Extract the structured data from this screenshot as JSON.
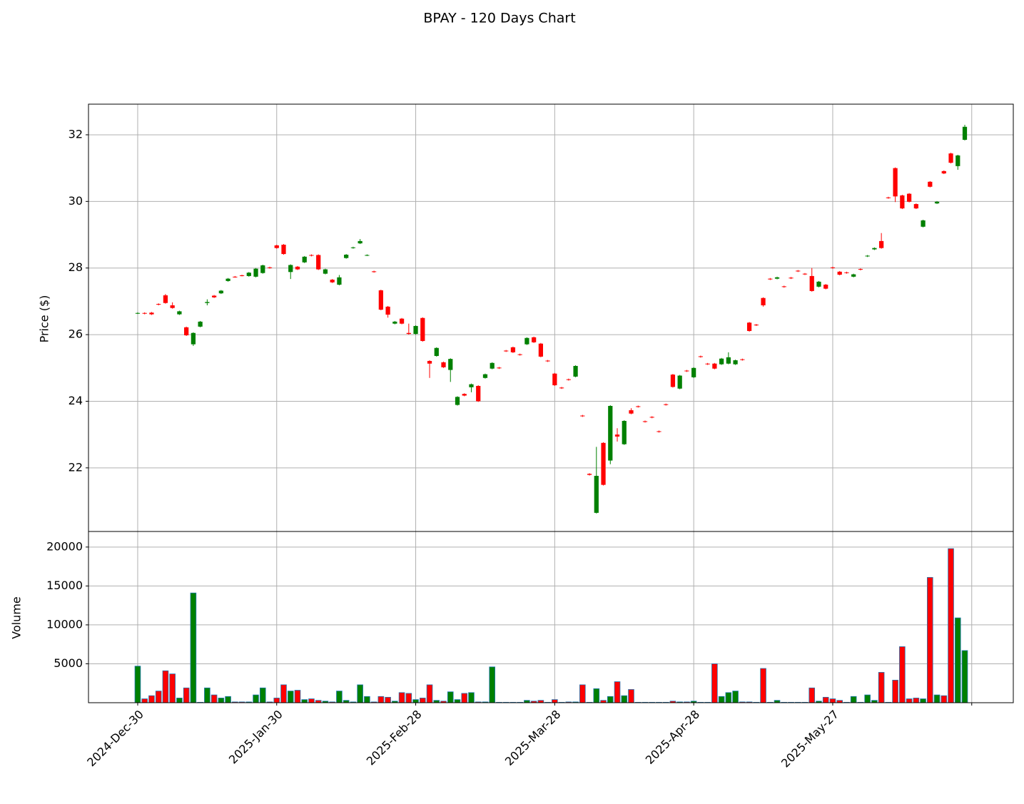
{
  "chart_data": {
    "type": "candlestick",
    "title": "BPAY - 120 Days Chart",
    "y_label": "Price ($)",
    "volume_label": "Volume",
    "up_color": "green",
    "down_color": "red",
    "volume_edge_color": "#1f77b4",
    "grid": true,
    "categories": [
      "2024-Dec-30",
      null,
      null,
      null,
      null,
      null,
      null,
      null,
      null,
      null,
      null,
      null,
      null,
      null,
      null,
      null,
      null,
      null,
      null,
      null,
      "2025-Jan-30",
      null,
      null,
      null,
      null,
      null,
      null,
      null,
      null,
      null,
      null,
      null,
      null,
      null,
      null,
      null,
      null,
      null,
      null,
      null,
      "2025-Feb-28",
      null,
      null,
      null,
      null,
      null,
      null,
      null,
      null,
      null,
      null,
      null,
      null,
      null,
      null,
      null,
      null,
      null,
      null,
      null,
      "2025-Mar-28",
      null,
      null,
      null,
      null,
      null,
      null,
      null,
      null,
      null,
      null,
      null,
      null,
      null,
      null,
      null,
      null,
      null,
      null,
      null,
      "2025-Apr-28",
      null,
      null,
      null,
      null,
      null,
      null,
      null,
      null,
      null,
      null,
      null,
      null,
      null,
      null,
      null,
      null,
      null,
      null,
      null,
      "2025-May-27",
      null,
      null,
      null,
      null,
      null,
      null,
      null,
      null,
      null,
      null,
      null,
      null,
      null,
      null,
      null,
      null,
      null,
      null,
      null
    ],
    "xlim": [
      -7.08,
      125.98
    ],
    "xticks": [
      0,
      20,
      40,
      60,
      80,
      100,
      120
    ],
    "open": [
      26.64,
      26.65,
      26.66,
      26.92,
      27.18,
      26.88,
      26.61,
      26.22,
      25.71,
      26.24,
      26.95,
      27.17,
      27.24,
      27.61,
      27.74,
      27.78,
      27.76,
      27.74,
      27.85,
      28.02,
      28.68,
      28.7,
      27.88,
      28.04,
      28.17,
      28.39,
      28.39,
      27.83,
      27.65,
      27.5,
      28.3,
      28.6,
      28.74,
      28.38,
      27.9,
      27.33,
      26.84,
      26.33,
      26.48,
      26.05,
      26.02,
      26.5,
      25.21,
      25.36,
      25.17,
      24.94,
      23.89,
      24.22,
      24.42,
      24.46,
      24.7,
      24.98,
      25.01,
      25.52,
      25.62,
      25.41,
      25.71,
      25.92,
      25.73,
      25.22,
      24.83,
      24.41,
      24.66,
      24.74,
      23.57,
      21.82,
      20.65,
      22.75,
      22.22,
      23.0,
      22.71,
      23.73,
      23.85,
      23.4,
      23.53,
      23.1,
      23.91,
      24.8,
      24.38,
      24.92,
      24.72,
      25.35,
      25.13,
      25.13,
      25.11,
      25.13,
      25.11,
      25.26,
      26.36,
      26.3,
      27.1,
      27.68,
      27.68,
      27.45,
      27.71,
      27.92,
      27.83,
      27.76,
      27.44,
      27.5,
      28.02,
      27.89,
      27.87,
      27.74,
      27.97,
      28.35,
      28.56,
      28.81,
      30.12,
      31.0,
      30.18,
      30.23,
      29.92,
      29.24,
      30.59,
      29.94,
      30.91,
      31.44,
      31.06,
      31.85
    ],
    "high": [
      26.67,
      26.67,
      26.68,
      26.94,
      27.22,
      26.97,
      26.72,
      26.24,
      26.07,
      26.41,
      27.06,
      27.19,
      27.34,
      27.7,
      27.76,
      27.8,
      27.88,
      28.0,
      28.1,
      28.04,
      28.7,
      28.72,
      28.11,
      28.06,
      28.36,
      28.41,
      28.41,
      27.98,
      27.67,
      27.79,
      28.42,
      28.64,
      28.87,
      28.41,
      27.92,
      27.35,
      26.86,
      26.41,
      26.5,
      26.33,
      26.28,
      26.52,
      25.23,
      25.62,
      25.19,
      25.29,
      24.15,
      24.24,
      24.53,
      24.48,
      24.83,
      25.17,
      25.03,
      25.54,
      25.64,
      25.43,
      25.92,
      25.94,
      25.75,
      25.24,
      24.85,
      24.43,
      24.68,
      25.08,
      23.59,
      21.84,
      22.63,
      22.77,
      23.88,
      23.19,
      23.43,
      23.79,
      23.87,
      23.42,
      23.55,
      23.12,
      23.93,
      24.82,
      24.79,
      24.94,
      25.02,
      25.37,
      25.15,
      25.15,
      25.3,
      25.47,
      25.25,
      25.28,
      26.38,
      26.32,
      27.12,
      27.7,
      27.74,
      27.47,
      27.73,
      27.94,
      27.85,
      28.0,
      27.61,
      27.52,
      28.04,
      27.91,
      27.89,
      27.83,
      27.99,
      28.39,
      28.62,
      29.05,
      30.14,
      31.02,
      30.2,
      30.25,
      29.94,
      29.45,
      30.61,
      30.01,
      30.93,
      31.46,
      31.4,
      32.3
    ],
    "low": [
      26.62,
      26.61,
      26.59,
      26.88,
      26.93,
      26.78,
      26.59,
      25.96,
      25.66,
      26.22,
      26.88,
      27.1,
      27.22,
      27.59,
      27.71,
      27.75,
      27.74,
      27.72,
      27.83,
      27.98,
      28.58,
      28.4,
      27.67,
      27.94,
      28.15,
      28.35,
      27.94,
      27.81,
      27.55,
      27.48,
      28.28,
      28.58,
      28.72,
      28.36,
      27.86,
      26.73,
      26.51,
      26.31,
      26.31,
      26.0,
      26.0,
      25.79,
      24.7,
      25.34,
      25.0,
      24.58,
      23.87,
      24.15,
      24.27,
      23.98,
      24.68,
      24.96,
      24.97,
      25.48,
      25.45,
      25.37,
      25.69,
      25.75,
      25.32,
      25.18,
      24.46,
      24.37,
      24.62,
      24.72,
      23.53,
      21.77,
      20.63,
      21.47,
      22.11,
      22.79,
      22.69,
      23.61,
      23.81,
      23.36,
      23.49,
      23.06,
      23.87,
      24.41,
      24.36,
      24.88,
      24.7,
      25.31,
      25.09,
      24.96,
      25.09,
      25.11,
      25.09,
      25.22,
      26.09,
      26.26,
      26.84,
      27.64,
      27.66,
      27.41,
      27.67,
      27.88,
      27.79,
      27.29,
      27.42,
      27.36,
      27.98,
      27.78,
      27.83,
      27.72,
      27.93,
      28.33,
      28.54,
      28.58,
      30.08,
      29.98,
      29.77,
      29.97,
      29.77,
      29.22,
      30.42,
      29.92,
      30.82,
      31.14,
      30.95,
      31.83
    ],
    "close": [
      26.65,
      26.63,
      26.61,
      26.9,
      26.95,
      26.8,
      26.7,
      25.98,
      26.05,
      26.39,
      26.98,
      27.12,
      27.32,
      27.68,
      27.73,
      27.77,
      27.86,
      27.98,
      28.08,
      28.0,
      28.6,
      28.42,
      28.09,
      27.96,
      28.34,
      28.37,
      27.96,
      27.96,
      27.57,
      27.72,
      28.4,
      28.62,
      28.81,
      28.39,
      27.88,
      26.75,
      26.6,
      26.39,
      26.33,
      26.02,
      26.26,
      25.81,
      25.13,
      25.6,
      25.02,
      25.27,
      24.13,
      24.17,
      24.51,
      24.0,
      24.81,
      25.15,
      24.99,
      25.5,
      25.47,
      25.39,
      25.9,
      25.77,
      25.34,
      25.2,
      24.48,
      24.39,
      24.64,
      25.06,
      23.55,
      21.79,
      21.76,
      21.49,
      23.86,
      22.94,
      23.41,
      23.63,
      23.83,
      23.38,
      23.51,
      23.08,
      23.89,
      24.43,
      24.77,
      24.9,
      25.0,
      25.33,
      25.11,
      24.98,
      25.28,
      25.32,
      25.23,
      25.24,
      26.11,
      26.28,
      26.88,
      27.66,
      27.72,
      27.43,
      27.69,
      27.9,
      27.81,
      27.31,
      27.59,
      27.38,
      28.0,
      27.8,
      27.85,
      27.81,
      27.95,
      28.37,
      28.6,
      28.6,
      30.1,
      30.15,
      29.79,
      29.99,
      29.79,
      29.43,
      30.44,
      29.99,
      30.84,
      31.16,
      31.38,
      32.24
    ],
    "volume": [
      4700,
      500,
      900,
      1500,
      4100,
      3700,
      600,
      1900,
      14100,
      50,
      1900,
      1000,
      600,
      800,
      100,
      100,
      100,
      1000,
      1900,
      100,
      600,
      2300,
      1500,
      1600,
      400,
      500,
      300,
      200,
      100,
      1500,
      300,
      100,
      2300,
      800,
      100,
      800,
      700,
      200,
      1300,
      1200,
      400,
      600,
      2300,
      300,
      200,
      1400,
      400,
      1200,
      1300,
      100,
      100,
      4600,
      50,
      50,
      50,
      50,
      300,
      200,
      300,
      50,
      400,
      50,
      100,
      100,
      2300,
      50,
      1800,
      300,
      800,
      2700,
      900,
      1700,
      50,
      50,
      50,
      50,
      50,
      200,
      100,
      100,
      200,
      50,
      50,
      5000,
      800,
      1300,
      1500,
      100,
      100,
      50,
      4400,
      50,
      300,
      50,
      50,
      50,
      50,
      1900,
      200,
      700,
      500,
      300,
      50,
      800,
      50,
      1000,
      300,
      3900,
      50,
      2900,
      7200,
      500,
      600,
      500,
      16100,
      1000,
      900,
      19800,
      10900,
      6700
    ],
    "ylim": [
      20.09,
      32.92
    ],
    "yticks": [
      22,
      24,
      26,
      28,
      30,
      32
    ],
    "volume_ylim": [
      0,
      22000
    ],
    "volume_yticks": [
      5000,
      10000,
      15000,
      20000
    ]
  }
}
